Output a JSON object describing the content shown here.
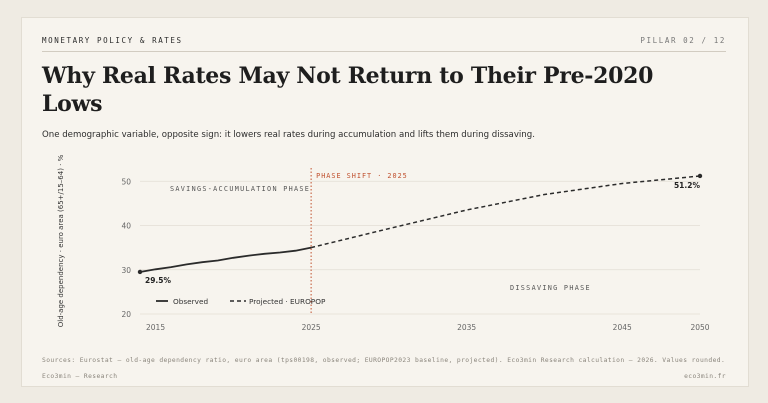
{
  "header": {
    "kicker": "MONETARY POLICY & RATES",
    "pillar": "PILLAR 02 / 12"
  },
  "title": "Why Real Rates May Not Return to Their Pre-2020 Lows",
  "subtitle": "One demographic variable, opposite sign: it lowers real rates during accumulation and lifts them during dissaving.",
  "footer": {
    "sources": "Sources: Eurostat — old-age dependency ratio, euro area (tps00198, observed; EUROPOP2023 baseline, projected). Eco3min Research calculation — 2026. Values rounded.",
    "left": "Eco3min — Research",
    "right": "eco3min.fr"
  },
  "colors": {
    "line": "#2b2b2b",
    "phase_shift": "#c0502e",
    "grid": "#e3ded5",
    "axis_text": "#666666"
  },
  "chart_data": {
    "type": "line",
    "ylabel": "Old-age dependency · euro area (65+/15–64) · %",
    "xlabel": "",
    "xlim": [
      2014,
      2050
    ],
    "ylim": [
      20,
      53
    ],
    "x_ticks": [
      2015,
      2025,
      2035,
      2045,
      2050
    ],
    "y_ticks": [
      20,
      30,
      40,
      50
    ],
    "grid": true,
    "legend_position": "bottom-left",
    "series": [
      {
        "name": "Observed",
        "style": "solid",
        "x": [
          2014,
          2015,
          2016,
          2017,
          2018,
          2019,
          2020,
          2021,
          2022,
          2023,
          2024,
          2025
        ],
        "y": [
          29.5,
          30.1,
          30.6,
          31.2,
          31.7,
          32.1,
          32.7,
          33.2,
          33.6,
          33.9,
          34.3,
          35.0
        ]
      },
      {
        "name": "Projected · EUROPOP",
        "style": "dashed",
        "x": [
          2025,
          2030,
          2035,
          2040,
          2045,
          2050
        ],
        "y": [
          35.0,
          39.3,
          43.5,
          47.0,
          49.5,
          51.2
        ]
      }
    ],
    "annotations": {
      "phase_shift_year": 2025,
      "phase_shift_label": "PHASE SHIFT · 2025",
      "phase_left_label": "SAVINGS-ACCUMULATION PHASE",
      "phase_right_label": "DISSAVING PHASE",
      "start_label": "29.5%",
      "end_label": "51.2%"
    }
  }
}
